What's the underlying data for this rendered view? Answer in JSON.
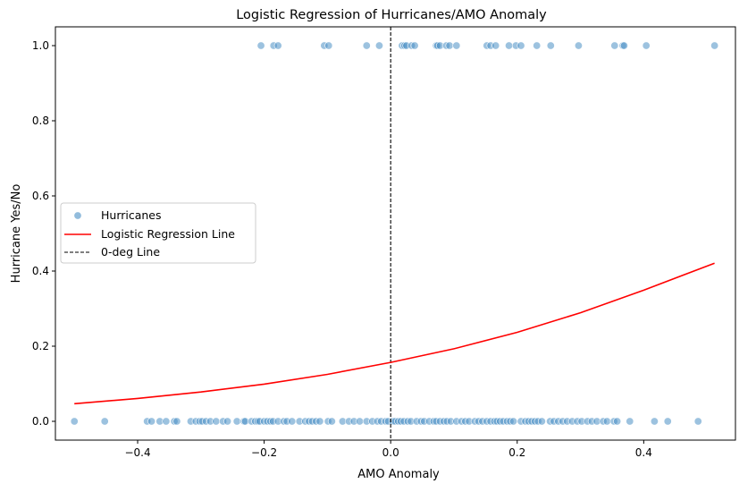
{
  "chart_data": {
    "type": "scatter",
    "title": "Logistic Regression of Hurricanes/AMO Anomaly",
    "xlabel": "AMO Anomaly",
    "ylabel": "Hurricane Yes/No",
    "xlim": [
      -0.53,
      0.545
    ],
    "ylim": [
      -0.05,
      1.05
    ],
    "xticks": [
      -0.4,
      -0.2,
      0.0,
      0.2,
      0.4
    ],
    "xtick_labels": [
      "−0.4",
      "−0.2",
      "0.0",
      "0.2",
      "0.4"
    ],
    "yticks": [
      0.0,
      0.2,
      0.4,
      0.6,
      0.8,
      1.0
    ],
    "ytick_labels": [
      "0.0",
      "0.2",
      "0.4",
      "0.6",
      "0.8",
      "1.0"
    ],
    "grid": false,
    "legend_position": "center-left",
    "legend": [
      {
        "label": "Hurricanes",
        "kind": "marker"
      },
      {
        "label": "Logistic Regression Line",
        "kind": "line"
      },
      {
        "label": "0-deg Line",
        "kind": "dashed"
      }
    ],
    "series": [
      {
        "name": "Hurricanes",
        "kind": "scatter",
        "color": "#4a90c4",
        "opacity": 0.55,
        "points_y1_x": [
          -0.205,
          -0.185,
          -0.178,
          -0.105,
          -0.098,
          -0.038,
          -0.018,
          0.018,
          0.022,
          0.025,
          0.033,
          0.038,
          0.072,
          0.074,
          0.078,
          0.088,
          0.093,
          0.104,
          0.152,
          0.158,
          0.166,
          0.187,
          0.198,
          0.206,
          0.231,
          0.253,
          0.297,
          0.354,
          0.367,
          0.369,
          0.404,
          0.512
        ],
        "points_y0_x": [
          -0.5,
          -0.452,
          -0.385,
          -0.378,
          -0.365,
          -0.355,
          -0.342,
          -0.338,
          -0.316,
          -0.308,
          -0.302,
          -0.298,
          -0.292,
          -0.285,
          -0.276,
          -0.265,
          -0.258,
          -0.243,
          -0.232,
          -0.23,
          -0.22,
          -0.214,
          -0.21,
          -0.207,
          -0.2,
          -0.195,
          -0.19,
          -0.186,
          -0.178,
          -0.169,
          -0.164,
          -0.156,
          -0.144,
          -0.135,
          -0.129,
          -0.124,
          -0.118,
          -0.112,
          -0.099,
          -0.093,
          -0.076,
          -0.066,
          -0.058,
          -0.049,
          -0.038,
          -0.029,
          -0.021,
          -0.015,
          -0.008,
          -0.004,
          0.003,
          0.007,
          0.012,
          0.016,
          0.021,
          0.027,
          0.032,
          0.041,
          0.048,
          0.053,
          0.061,
          0.068,
          0.072,
          0.078,
          0.084,
          0.089,
          0.095,
          0.104,
          0.112,
          0.118,
          0.124,
          0.133,
          0.139,
          0.145,
          0.152,
          0.158,
          0.164,
          0.168,
          0.173,
          0.178,
          0.184,
          0.189,
          0.194,
          0.206,
          0.213,
          0.218,
          0.223,
          0.228,
          0.233,
          0.239,
          0.252,
          0.258,
          0.265,
          0.272,
          0.279,
          0.287,
          0.295,
          0.302,
          0.311,
          0.318,
          0.326,
          0.336,
          0.342,
          0.353,
          0.358,
          0.378,
          0.417,
          0.438,
          0.486
        ]
      },
      {
        "name": "Logistic Regression Line",
        "kind": "line",
        "color": "#ff0000",
        "x": [
          -0.5,
          -0.4,
          -0.3,
          -0.2,
          -0.1,
          0.0,
          0.1,
          0.2,
          0.3,
          0.4,
          0.512
        ],
        "y": [
          0.047,
          0.061,
          0.078,
          0.099,
          0.125,
          0.157,
          0.193,
          0.237,
          0.289,
          0.349,
          0.421
        ]
      },
      {
        "name": "0-deg Line",
        "kind": "vline",
        "color": "#000000",
        "x": 0.0
      }
    ]
  }
}
